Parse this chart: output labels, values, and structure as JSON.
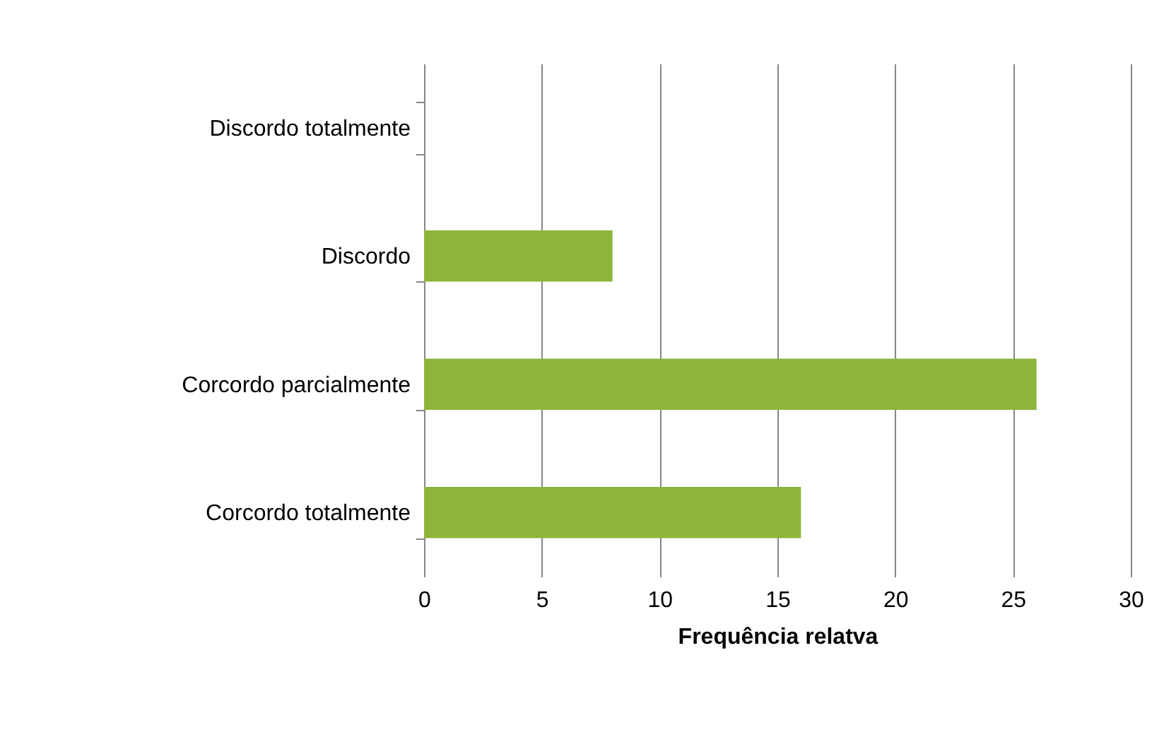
{
  "chart_data": {
    "type": "bar",
    "orientation": "horizontal",
    "xlabel": "Frequência relatva",
    "categories": [
      "Discordo totalmente",
      "Discordo",
      "Corcordo parcialmente",
      "Corcordo totalmente"
    ],
    "values": [
      0,
      8,
      26,
      16
    ],
    "color": "#8db53b",
    "xlim": [
      0,
      30
    ],
    "xticks": [
      0,
      5,
      10,
      15,
      20,
      25,
      30
    ],
    "grid": "x"
  }
}
